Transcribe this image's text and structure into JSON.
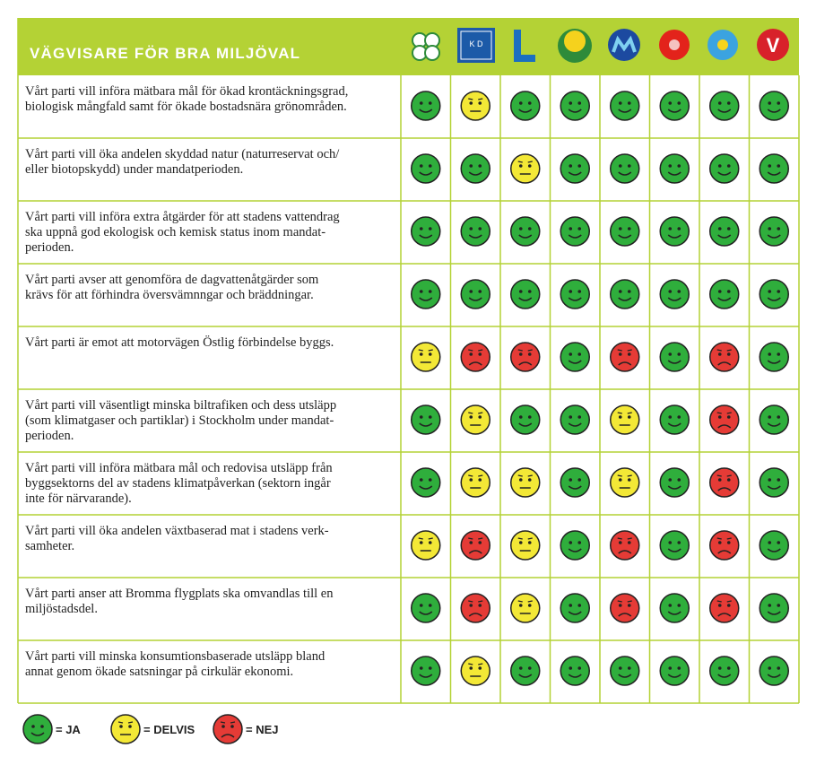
{
  "header": {
    "title": "VÄGVISARE FÖR BRA MILJÖVAL",
    "kd_logo": "K D",
    "v_logo": "V"
  },
  "table": {
    "rows": [
      {
        "text": [
          "Vårt parti vill införa mätbara mål för ökad krontäckningsgrad,",
          "biologisk mångfald samt för ökade bostadsnära grönområden."
        ],
        "ratings": [
          0,
          1,
          0,
          0,
          0,
          0,
          0,
          0
        ]
      },
      {
        "text": [
          "Vårt parti vill öka andelen skyddad natur (naturreservat och/",
          "eller biotopskydd) under mandatperioden."
        ],
        "ratings": [
          0,
          0,
          1,
          0,
          0,
          0,
          0,
          0
        ]
      },
      {
        "text": [
          "Vårt parti vill införa extra åtgärder för att stadens vattendrag",
          "ska uppnå god ekologisk och kemisk status inom mandat-",
          "perioden."
        ],
        "ratings": [
          0,
          0,
          0,
          0,
          0,
          0,
          0,
          0
        ]
      },
      {
        "text": [
          "Vårt parti avser att genomföra de dagvattenåtgärder som",
          "krävs för att förhindra översvämnngar och bräddningar."
        ],
        "ratings": [
          0,
          0,
          0,
          0,
          0,
          0,
          0,
          0
        ]
      },
      {
        "text": [
          "Vårt parti är emot att motorvägen Östlig förbindelse byggs."
        ],
        "ratings": [
          1,
          2,
          2,
          0,
          2,
          0,
          2,
          0
        ]
      },
      {
        "text": [
          "Vårt parti vill väsentligt minska biltrafiken och dess utsläpp",
          "(som klimatgaser och partiklar) i Stockholm under mandat-",
          "perioden."
        ],
        "ratings": [
          0,
          1,
          0,
          0,
          1,
          0,
          2,
          0
        ]
      },
      {
        "text": [
          "Vårt parti vill införa mätbara mål och redovisa utsläpp från",
          "byggsektorns del av stadens klimatpåverkan (sektorn ingår",
          "inte för närvarande)."
        ],
        "ratings": [
          0,
          1,
          1,
          0,
          1,
          0,
          2,
          0
        ]
      },
      {
        "text": [
          "Vårt parti vill öka andelen växtbaserad mat i stadens verk-",
          "samheter."
        ],
        "ratings": [
          1,
          2,
          1,
          0,
          2,
          0,
          2,
          0
        ]
      },
      {
        "text": [
          "Vårt parti anser att Bromma flygplats ska omvandlas till en",
          "miljöstadsdel."
        ],
        "ratings": [
          0,
          2,
          1,
          0,
          2,
          0,
          2,
          0
        ]
      },
      {
        "text": [
          "Vårt parti vill minska konsumtionsbaserade utsläpp bland",
          "annat genom ökade satsningar på cirkulär ekonomi."
        ],
        "ratings": [
          0,
          1,
          0,
          0,
          0,
          0,
          0,
          0
        ]
      }
    ]
  },
  "legend": [
    "= JA",
    "= DELVIS",
    "= NEJ"
  ]
}
